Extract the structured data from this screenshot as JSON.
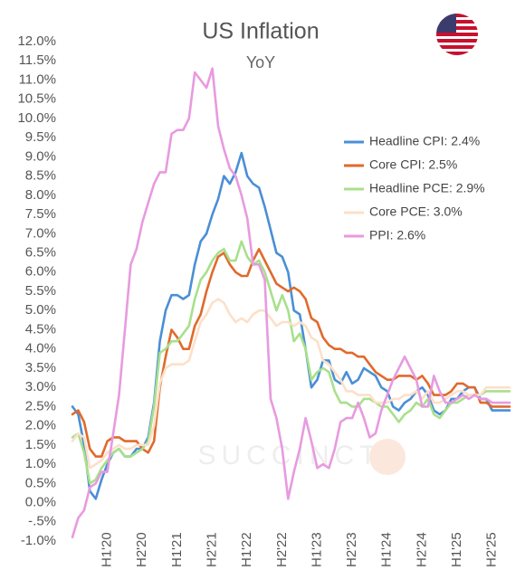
{
  "chart_data": {
    "type": "line",
    "title": "US Inflation",
    "subtitle": "YoY",
    "watermark": "SUCCINCT",
    "categories": [
      null,
      null,
      null,
      null,
      null,
      null,
      "H1'20",
      null,
      null,
      null,
      null,
      null,
      "H2'20",
      null,
      null,
      null,
      null,
      null,
      "H1'21",
      null,
      null,
      null,
      null,
      null,
      "H2'21",
      null,
      null,
      null,
      null,
      null,
      "H1'22",
      null,
      null,
      null,
      null,
      null,
      "H2'22",
      null,
      null,
      null,
      null,
      null,
      "H1'23",
      null,
      null,
      null,
      null,
      null,
      "H2'23",
      null,
      null,
      null,
      null,
      null,
      "H1'24",
      null,
      null,
      null,
      null,
      null,
      "H2'24",
      null,
      null,
      null,
      null,
      null,
      "H1'25",
      null,
      null,
      null,
      null,
      null,
      "H2'25",
      null,
      null,
      null
    ],
    "series": [
      {
        "name": "Headline CPI: 2.4%",
        "color": "#4a8fd6",
        "values": [
          2.5,
          2.3,
          1.5,
          0.3,
          0.1,
          0.6,
          1.0,
          1.3,
          1.4,
          1.2,
          1.2,
          1.4,
          1.4,
          1.7,
          2.6,
          4.2,
          5.0,
          5.4,
          5.4,
          5.3,
          5.4,
          6.2,
          6.8,
          7.0,
          7.5,
          7.9,
          8.5,
          8.3,
          8.6,
          9.1,
          8.5,
          8.3,
          8.2,
          7.7,
          7.1,
          6.5,
          6.4,
          6.0,
          5.0,
          4.9,
          4.0,
          3.0,
          3.2,
          3.7,
          3.7,
          3.2,
          3.1,
          3.4,
          3.1,
          3.2,
          3.5,
          3.4,
          3.3,
          3.0,
          2.9,
          2.5,
          2.4,
          2.6,
          2.7,
          2.9,
          3.0,
          2.8,
          2.4,
          2.3,
          2.4,
          2.7,
          2.7,
          2.9,
          3.0,
          3.0,
          2.7,
          2.7,
          2.4,
          2.4,
          2.4,
          2.4
        ]
      },
      {
        "name": "Core CPI: 2.5%",
        "color": "#e06a2c",
        "values": [
          2.3,
          2.4,
          2.1,
          1.4,
          1.2,
          1.2,
          1.6,
          1.7,
          1.7,
          1.6,
          1.6,
          1.6,
          1.4,
          1.3,
          1.6,
          3.0,
          3.8,
          4.5,
          4.3,
          4.0,
          4.0,
          4.6,
          4.9,
          5.5,
          6.0,
          6.4,
          6.5,
          6.2,
          6.0,
          5.9,
          5.9,
          6.3,
          6.6,
          6.3,
          6.0,
          5.7,
          5.6,
          5.5,
          5.6,
          5.5,
          5.3,
          4.8,
          4.7,
          4.3,
          4.1,
          4.0,
          4.0,
          3.9,
          3.9,
          3.8,
          3.8,
          3.6,
          3.4,
          3.3,
          3.2,
          3.2,
          3.3,
          3.3,
          3.3,
          3.2,
          3.3,
          3.1,
          2.8,
          2.8,
          2.8,
          2.9,
          3.1,
          3.1,
          3.0,
          3.0,
          2.6,
          2.6,
          2.5,
          2.5,
          2.5,
          2.5
        ]
      },
      {
        "name": "Headline PCE: 2.9%",
        "color": "#a8e08c",
        "values": [
          1.7,
          1.8,
          1.3,
          0.5,
          0.6,
          0.9,
          1.1,
          1.3,
          1.4,
          1.2,
          1.2,
          1.3,
          1.4,
          1.6,
          2.5,
          3.9,
          4.0,
          4.2,
          4.2,
          4.4,
          4.6,
          5.3,
          5.8,
          6.0,
          6.3,
          6.5,
          6.6,
          6.3,
          6.3,
          6.8,
          6.4,
          6.2,
          6.3,
          6.0,
          5.5,
          5.0,
          5.4,
          5.0,
          4.2,
          4.4,
          4.0,
          3.2,
          3.4,
          3.5,
          3.4,
          2.9,
          2.6,
          2.6,
          2.5,
          2.5,
          2.7,
          2.7,
          2.6,
          2.5,
          2.5,
          2.3,
          2.1,
          2.3,
          2.4,
          2.6,
          2.5,
          2.7,
          2.3,
          2.2,
          2.4,
          2.6,
          2.6,
          2.7,
          2.8,
          2.8,
          2.8,
          2.9,
          2.9,
          2.9,
          2.9,
          2.9
        ]
      },
      {
        "name": "Core PCE: 3.0%",
        "color": "#fde0c8",
        "values": [
          1.6,
          1.8,
          1.7,
          0.9,
          1.0,
          1.1,
          1.3,
          1.4,
          1.5,
          1.4,
          1.4,
          1.5,
          1.5,
          1.5,
          2.0,
          3.1,
          3.5,
          3.6,
          3.6,
          3.6,
          3.7,
          4.2,
          4.7,
          4.9,
          5.2,
          5.3,
          5.2,
          4.9,
          4.7,
          4.8,
          4.7,
          4.9,
          5.0,
          5.0,
          4.8,
          4.6,
          4.7,
          4.7,
          4.6,
          4.7,
          4.6,
          4.3,
          4.2,
          3.7,
          3.6,
          3.4,
          3.2,
          2.9,
          2.9,
          2.8,
          2.8,
          2.8,
          2.6,
          2.6,
          2.6,
          2.7,
          2.7,
          2.8,
          2.8,
          2.9,
          2.7,
          2.9,
          2.6,
          2.6,
          2.7,
          2.8,
          2.9,
          2.9,
          2.8,
          2.8,
          2.8,
          3.0,
          3.0,
          3.0,
          3.0,
          3.0
        ]
      },
      {
        "name": "PPI: 2.6%",
        "color": "#e89ae0",
        "values": [
          -0.9,
          -0.4,
          -0.2,
          0.4,
          0.5,
          0.8,
          0.8,
          1.8,
          2.8,
          4.5,
          6.2,
          6.6,
          7.3,
          7.8,
          8.3,
          8.6,
          8.6,
          9.6,
          9.7,
          9.7,
          10.0,
          11.2,
          11.0,
          10.8,
          11.3,
          9.8,
          9.2,
          8.7,
          8.5,
          8.0,
          7.4,
          6.2,
          6.2,
          5.8,
          2.7,
          2.2,
          1.4,
          0.1,
          0.8,
          1.4,
          2.2,
          1.6,
          0.9,
          1.0,
          0.9,
          1.4,
          2.1,
          2.2,
          2.2,
          2.6,
          2.2,
          1.7,
          1.8,
          2.4,
          2.8,
          3.2,
          3.5,
          3.8,
          3.5,
          3.2,
          2.5,
          2.5,
          3.3,
          2.9,
          2.6,
          2.6,
          2.7,
          2.8,
          2.7,
          2.8,
          2.7,
          2.7,
          2.6,
          2.6,
          2.6,
          2.6
        ]
      }
    ],
    "ylim": [
      -1.0,
      12.0
    ],
    "yticks": [
      {
        "value": -1.0,
        "label": "-1.0%"
      },
      {
        "value": -0.5,
        "label": "-.5%"
      },
      {
        "value": 0.0,
        "label": "0.0%"
      },
      {
        "value": 0.5,
        "label": "0.5%"
      },
      {
        "value": 1.0,
        "label": "1.0%"
      },
      {
        "value": 1.5,
        "label": "1.5%"
      },
      {
        "value": 2.0,
        "label": "2.0%"
      },
      {
        "value": 2.5,
        "label": "2.5%"
      },
      {
        "value": 3.0,
        "label": "3.0%"
      },
      {
        "value": 3.5,
        "label": "3.5%"
      },
      {
        "value": 4.0,
        "label": "4.0%"
      },
      {
        "value": 4.5,
        "label": "4.5%"
      },
      {
        "value": 5.0,
        "label": "5.0%"
      },
      {
        "value": 5.5,
        "label": "5.5%"
      },
      {
        "value": 6.0,
        "label": "6.0%"
      },
      {
        "value": 6.5,
        "label": "6.5%"
      },
      {
        "value": 7.0,
        "label": "7.0%"
      },
      {
        "value": 7.5,
        "label": "7.5%"
      },
      {
        "value": 8.0,
        "label": "8.0%"
      },
      {
        "value": 8.5,
        "label": "8.5%"
      },
      {
        "value": 9.0,
        "label": "9.0%"
      },
      {
        "value": 9.5,
        "label": "9.5%"
      },
      {
        "value": 10.0,
        "label": "10.0%"
      },
      {
        "value": 10.5,
        "label": "10.5%"
      },
      {
        "value": 11.0,
        "label": "11.0%"
      },
      {
        "value": 11.5,
        "label": "11.5%"
      },
      {
        "value": 12.0,
        "label": "12.0%"
      }
    ],
    "grid": false
  }
}
